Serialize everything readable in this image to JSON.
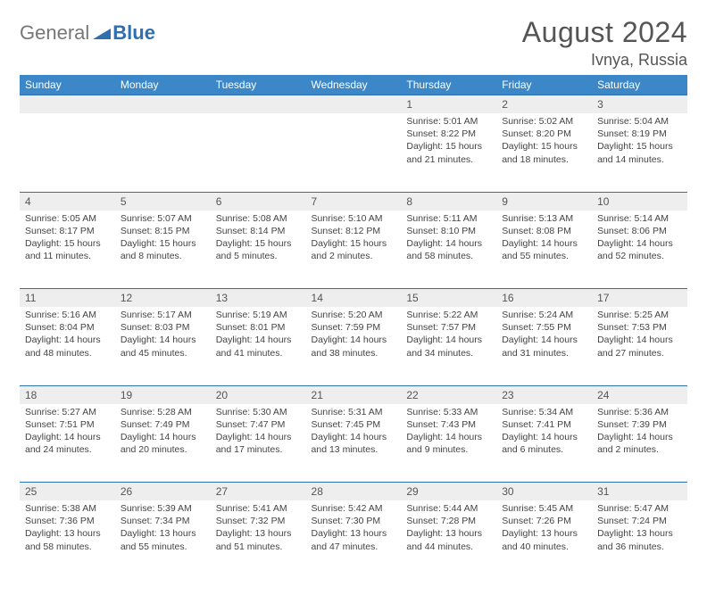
{
  "logo": {
    "general": "General",
    "blue": "Blue"
  },
  "title": "August 2024",
  "location": "Ivnya, Russia",
  "colors": {
    "header_bg": "#3b87c8",
    "header_text": "#ffffff",
    "border": "#2f6fb0",
    "daynum_bg": "#eeeeee",
    "text": "#444444",
    "logo_blue": "#2f6fb0",
    "logo_gray": "#777777"
  },
  "weekdays": [
    "Sunday",
    "Monday",
    "Tuesday",
    "Wednesday",
    "Thursday",
    "Friday",
    "Saturday"
  ],
  "weeks": [
    [
      null,
      null,
      null,
      null,
      {
        "n": "1",
        "sr": "Sunrise: 5:01 AM",
        "ss": "Sunset: 8:22 PM",
        "d1": "Daylight: 15 hours",
        "d2": "and 21 minutes."
      },
      {
        "n": "2",
        "sr": "Sunrise: 5:02 AM",
        "ss": "Sunset: 8:20 PM",
        "d1": "Daylight: 15 hours",
        "d2": "and 18 minutes."
      },
      {
        "n": "3",
        "sr": "Sunrise: 5:04 AM",
        "ss": "Sunset: 8:19 PM",
        "d1": "Daylight: 15 hours",
        "d2": "and 14 minutes."
      }
    ],
    [
      {
        "n": "4",
        "sr": "Sunrise: 5:05 AM",
        "ss": "Sunset: 8:17 PM",
        "d1": "Daylight: 15 hours",
        "d2": "and 11 minutes."
      },
      {
        "n": "5",
        "sr": "Sunrise: 5:07 AM",
        "ss": "Sunset: 8:15 PM",
        "d1": "Daylight: 15 hours",
        "d2": "and 8 minutes."
      },
      {
        "n": "6",
        "sr": "Sunrise: 5:08 AM",
        "ss": "Sunset: 8:14 PM",
        "d1": "Daylight: 15 hours",
        "d2": "and 5 minutes."
      },
      {
        "n": "7",
        "sr": "Sunrise: 5:10 AM",
        "ss": "Sunset: 8:12 PM",
        "d1": "Daylight: 15 hours",
        "d2": "and 2 minutes."
      },
      {
        "n": "8",
        "sr": "Sunrise: 5:11 AM",
        "ss": "Sunset: 8:10 PM",
        "d1": "Daylight: 14 hours",
        "d2": "and 58 minutes."
      },
      {
        "n": "9",
        "sr": "Sunrise: 5:13 AM",
        "ss": "Sunset: 8:08 PM",
        "d1": "Daylight: 14 hours",
        "d2": "and 55 minutes."
      },
      {
        "n": "10",
        "sr": "Sunrise: 5:14 AM",
        "ss": "Sunset: 8:06 PM",
        "d1": "Daylight: 14 hours",
        "d2": "and 52 minutes."
      }
    ],
    [
      {
        "n": "11",
        "sr": "Sunrise: 5:16 AM",
        "ss": "Sunset: 8:04 PM",
        "d1": "Daylight: 14 hours",
        "d2": "and 48 minutes."
      },
      {
        "n": "12",
        "sr": "Sunrise: 5:17 AM",
        "ss": "Sunset: 8:03 PM",
        "d1": "Daylight: 14 hours",
        "d2": "and 45 minutes."
      },
      {
        "n": "13",
        "sr": "Sunrise: 5:19 AM",
        "ss": "Sunset: 8:01 PM",
        "d1": "Daylight: 14 hours",
        "d2": "and 41 minutes."
      },
      {
        "n": "14",
        "sr": "Sunrise: 5:20 AM",
        "ss": "Sunset: 7:59 PM",
        "d1": "Daylight: 14 hours",
        "d2": "and 38 minutes."
      },
      {
        "n": "15",
        "sr": "Sunrise: 5:22 AM",
        "ss": "Sunset: 7:57 PM",
        "d1": "Daylight: 14 hours",
        "d2": "and 34 minutes."
      },
      {
        "n": "16",
        "sr": "Sunrise: 5:24 AM",
        "ss": "Sunset: 7:55 PM",
        "d1": "Daylight: 14 hours",
        "d2": "and 31 minutes."
      },
      {
        "n": "17",
        "sr": "Sunrise: 5:25 AM",
        "ss": "Sunset: 7:53 PM",
        "d1": "Daylight: 14 hours",
        "d2": "and 27 minutes."
      }
    ],
    [
      {
        "n": "18",
        "sr": "Sunrise: 5:27 AM",
        "ss": "Sunset: 7:51 PM",
        "d1": "Daylight: 14 hours",
        "d2": "and 24 minutes."
      },
      {
        "n": "19",
        "sr": "Sunrise: 5:28 AM",
        "ss": "Sunset: 7:49 PM",
        "d1": "Daylight: 14 hours",
        "d2": "and 20 minutes."
      },
      {
        "n": "20",
        "sr": "Sunrise: 5:30 AM",
        "ss": "Sunset: 7:47 PM",
        "d1": "Daylight: 14 hours",
        "d2": "and 17 minutes."
      },
      {
        "n": "21",
        "sr": "Sunrise: 5:31 AM",
        "ss": "Sunset: 7:45 PM",
        "d1": "Daylight: 14 hours",
        "d2": "and 13 minutes."
      },
      {
        "n": "22",
        "sr": "Sunrise: 5:33 AM",
        "ss": "Sunset: 7:43 PM",
        "d1": "Daylight: 14 hours",
        "d2": "and 9 minutes."
      },
      {
        "n": "23",
        "sr": "Sunrise: 5:34 AM",
        "ss": "Sunset: 7:41 PM",
        "d1": "Daylight: 14 hours",
        "d2": "and 6 minutes."
      },
      {
        "n": "24",
        "sr": "Sunrise: 5:36 AM",
        "ss": "Sunset: 7:39 PM",
        "d1": "Daylight: 14 hours",
        "d2": "and 2 minutes."
      }
    ],
    [
      {
        "n": "25",
        "sr": "Sunrise: 5:38 AM",
        "ss": "Sunset: 7:36 PM",
        "d1": "Daylight: 13 hours",
        "d2": "and 58 minutes."
      },
      {
        "n": "26",
        "sr": "Sunrise: 5:39 AM",
        "ss": "Sunset: 7:34 PM",
        "d1": "Daylight: 13 hours",
        "d2": "and 55 minutes."
      },
      {
        "n": "27",
        "sr": "Sunrise: 5:41 AM",
        "ss": "Sunset: 7:32 PM",
        "d1": "Daylight: 13 hours",
        "d2": "and 51 minutes."
      },
      {
        "n": "28",
        "sr": "Sunrise: 5:42 AM",
        "ss": "Sunset: 7:30 PM",
        "d1": "Daylight: 13 hours",
        "d2": "and 47 minutes."
      },
      {
        "n": "29",
        "sr": "Sunrise: 5:44 AM",
        "ss": "Sunset: 7:28 PM",
        "d1": "Daylight: 13 hours",
        "d2": "and 44 minutes."
      },
      {
        "n": "30",
        "sr": "Sunrise: 5:45 AM",
        "ss": "Sunset: 7:26 PM",
        "d1": "Daylight: 13 hours",
        "d2": "and 40 minutes."
      },
      {
        "n": "31",
        "sr": "Sunrise: 5:47 AM",
        "ss": "Sunset: 7:24 PM",
        "d1": "Daylight: 13 hours",
        "d2": "and 36 minutes."
      }
    ]
  ]
}
